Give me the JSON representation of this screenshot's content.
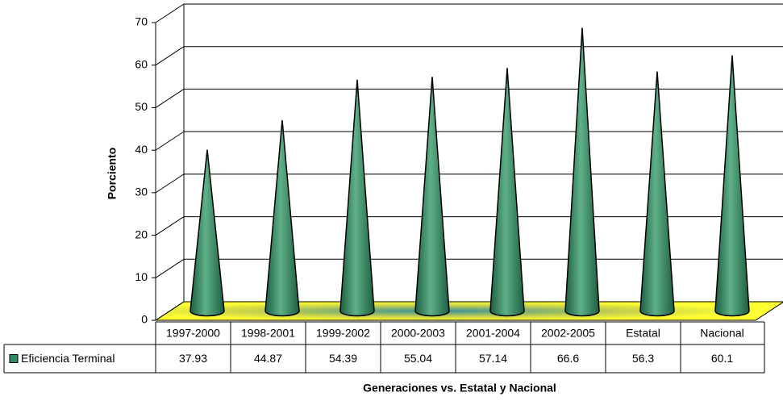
{
  "chart_data": {
    "type": "cone",
    "y_label": "Porciento",
    "x_label": "Generaciones vs. Estatal y Nacional",
    "categories": [
      "1997-2000",
      "1998-2001",
      "1999-2002",
      "2000-2003",
      "2001-2004",
      "2002-2005",
      "Estatal",
      "Nacional"
    ],
    "series": [
      {
        "name": "Eficiencia Terminal",
        "color": "#2f8a62",
        "values": [
          37.93,
          44.87,
          54.39,
          55.04,
          57.14,
          66.6,
          56.3,
          60.1
        ]
      }
    ],
    "ylim": [
      0,
      70
    ],
    "yticks": [
      0,
      10,
      20,
      30,
      40,
      50,
      60,
      70
    ],
    "grid": true
  }
}
